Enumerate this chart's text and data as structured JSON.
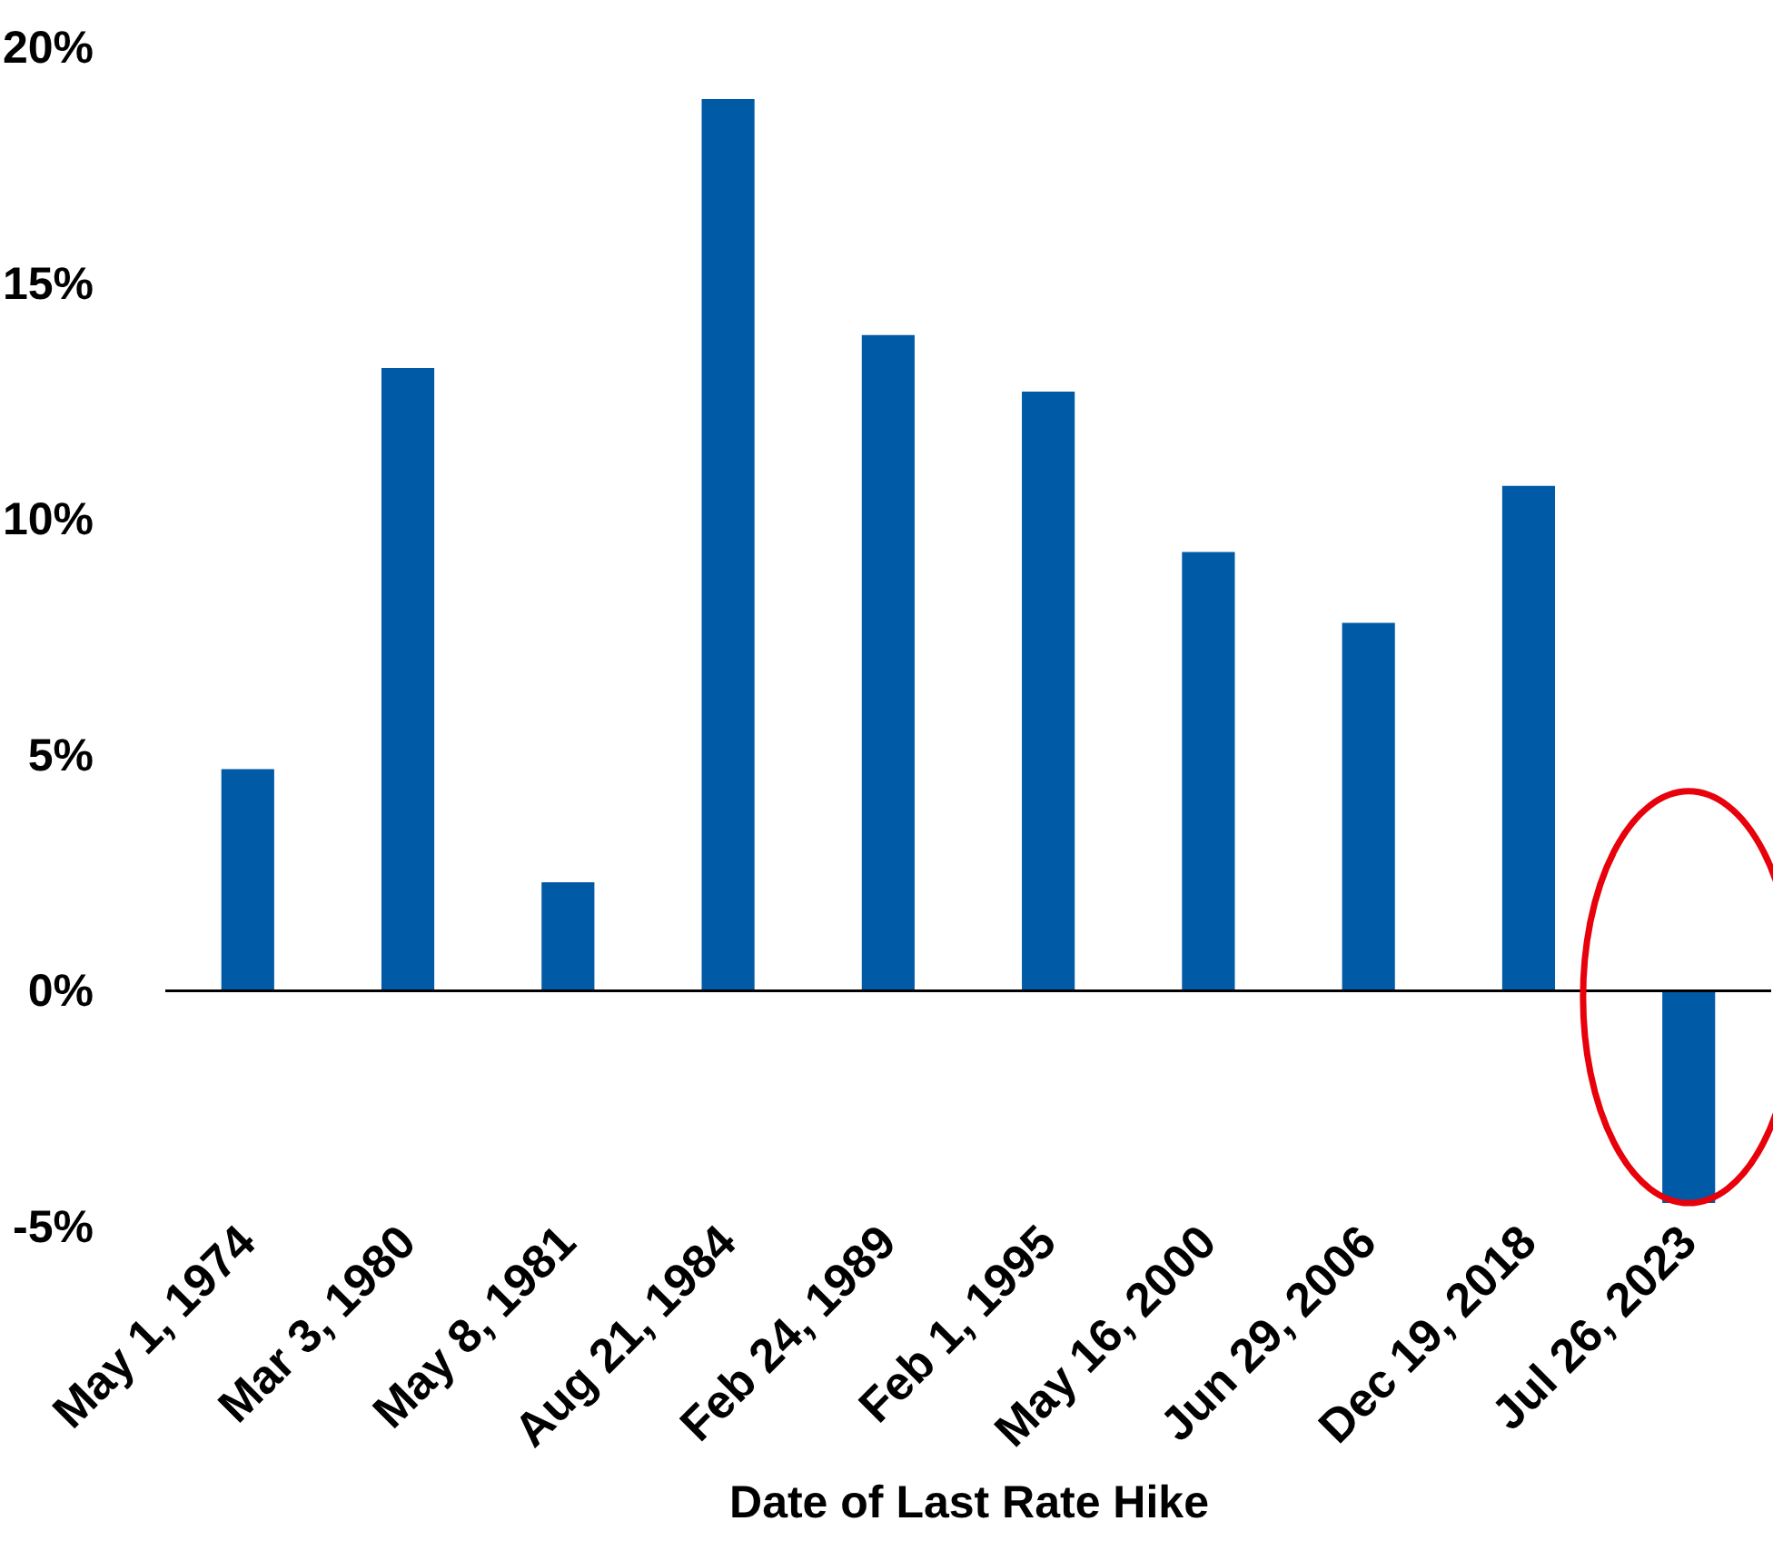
{
  "chart_data": {
    "type": "bar",
    "xlabel": "Date of Last Rate Hike",
    "categories": [
      "May 1, 1974",
      "Mar 3, 1980",
      "May 8, 1981",
      "Aug 21, 1984",
      "Feb 24, 1989",
      "Feb 1, 1995",
      "May 16, 2000",
      "Jun 29, 2006",
      "Dec 19, 2018",
      "Jul 26, 2023"
    ],
    "values": [
      4.7,
      13.2,
      2.3,
      18.9,
      13.9,
      12.7,
      9.3,
      7.8,
      10.7,
      -4.5
    ],
    "color": "#005aa6",
    "ylim": [
      -5,
      20
    ],
    "yticks": [
      {
        "value": -5,
        "label": "-5%"
      },
      {
        "value": 0,
        "label": "0%"
      },
      {
        "value": 5,
        "label": "5%"
      },
      {
        "value": 10,
        "label": "10%"
      },
      {
        "value": 15,
        "label": "15%"
      },
      {
        "value": 20,
        "label": "20%"
      }
    ],
    "ref_lines": [
      {
        "axis": "y",
        "value": 0,
        "color": "#000000"
      }
    ],
    "grid": false
  }
}
